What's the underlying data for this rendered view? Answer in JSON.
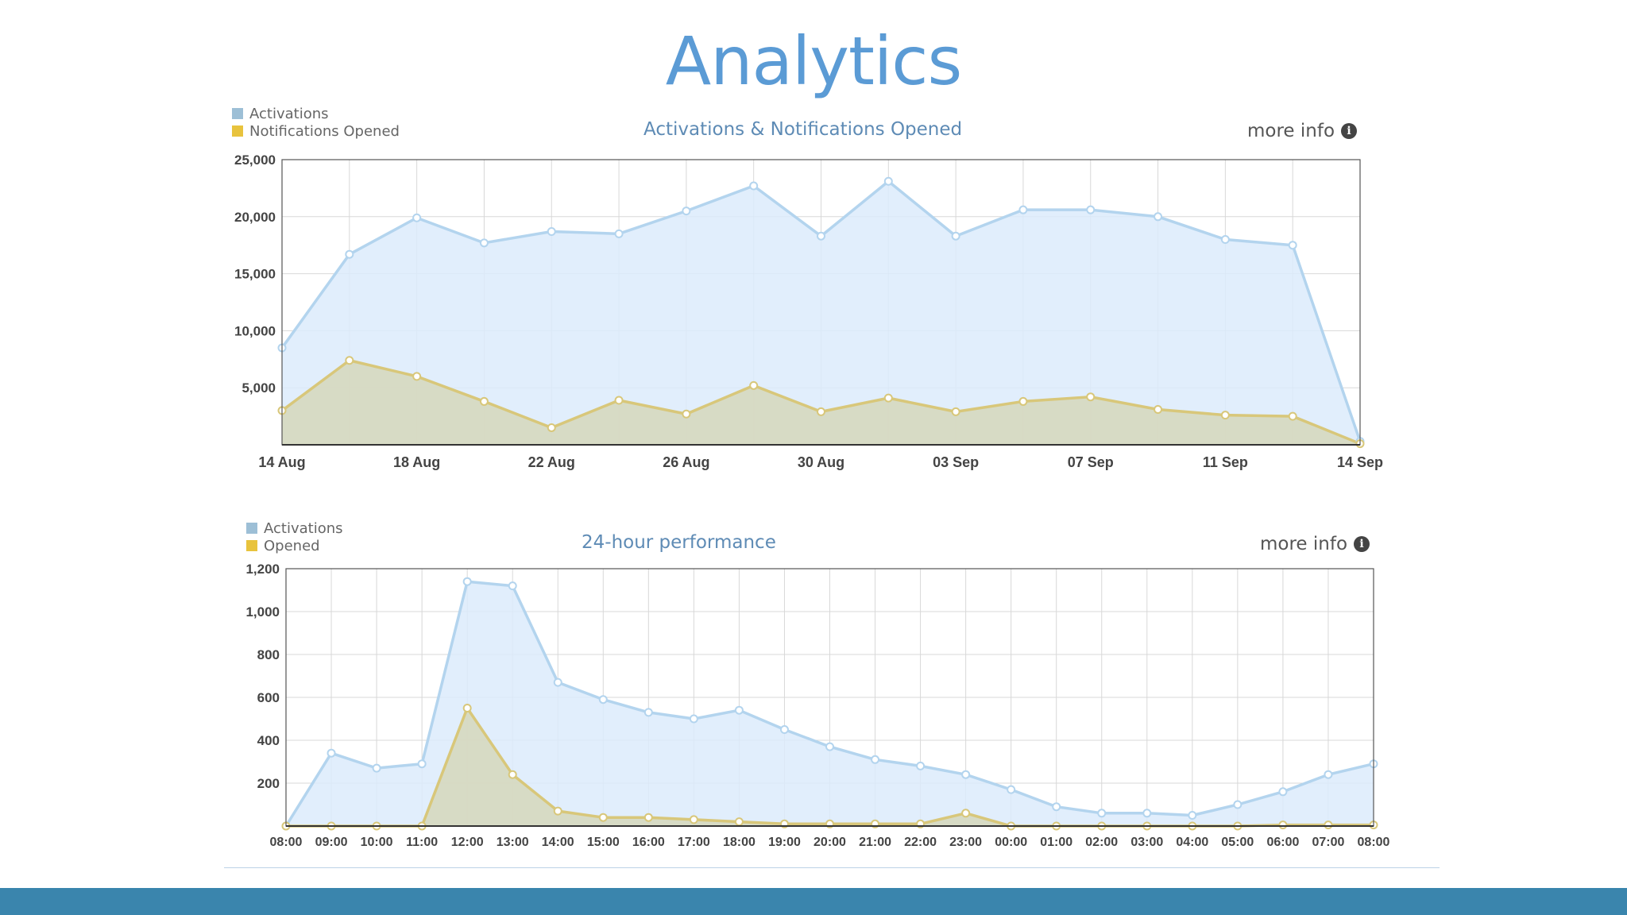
{
  "slide": {
    "title": "Analytics"
  },
  "colors": {
    "activations_line": "#b3d4ee",
    "activations_fill": "#dcebfb",
    "opened_line": "#d8c77a",
    "opened_fill": "#d6d8bf",
    "activations_swatch": "#9dbfd6",
    "opened_swatch": "#e8c33d",
    "grid": "#d8d8d8",
    "axis": "#555555",
    "tick_text": "#444444"
  },
  "chart_data": [
    {
      "type": "area",
      "title": "Activations & Notifications Opened",
      "more_info_label": "more info",
      "legend_position": "top-left",
      "grid": true,
      "ylim": [
        0,
        25000
      ],
      "yticks": [
        "25,000",
        "20,000",
        "15,000",
        "10,000",
        "5,000"
      ],
      "ytick_values": [
        25000,
        20000,
        15000,
        10000,
        5000
      ],
      "xtick_labels": [
        "14 Aug",
        "18 Aug",
        "22 Aug",
        "26 Aug",
        "30 Aug",
        "03 Sep",
        "07 Sep",
        "11 Sep",
        "14 Sep"
      ],
      "xtick_indices": [
        0,
        2,
        4,
        6,
        8,
        10,
        12,
        14,
        16
      ],
      "x": [
        "14 Aug",
        "16 Aug",
        "18 Aug",
        "20 Aug",
        "22 Aug",
        "24 Aug",
        "26 Aug",
        "28 Aug",
        "30 Aug",
        "01 Sep",
        "03 Sep",
        "05 Sep",
        "07 Sep",
        "09 Sep",
        "11 Sep",
        "13 Sep",
        "14 Sep"
      ],
      "series": [
        {
          "name": "Activations",
          "values": [
            8500,
            16700,
            19900,
            17700,
            18700,
            18500,
            20500,
            22700,
            18300,
            23100,
            18300,
            20600,
            20600,
            20000,
            18000,
            17500,
            300
          ]
        },
        {
          "name": "Notifications Opened",
          "values": [
            3000,
            7400,
            6000,
            3800,
            1500,
            3900,
            2700,
            5200,
            2900,
            4100,
            2900,
            3800,
            4200,
            3100,
            2600,
            2500,
            100
          ]
        }
      ]
    },
    {
      "type": "area",
      "title": "24-hour performance",
      "more_info_label": "more info",
      "legend_position": "top-left",
      "grid": true,
      "ylim": [
        0,
        1200
      ],
      "yticks": [
        "1,200",
        "1,000",
        "800",
        "600",
        "400",
        "200"
      ],
      "ytick_values": [
        1200,
        1000,
        800,
        600,
        400,
        200
      ],
      "x": [
        "08:00",
        "09:00",
        "10:00",
        "11:00",
        "12:00",
        "13:00",
        "14:00",
        "15:00",
        "16:00",
        "17:00",
        "18:00",
        "19:00",
        "20:00",
        "21:00",
        "22:00",
        "23:00",
        "00:00",
        "01:00",
        "02:00",
        "03:00",
        "04:00",
        "05:00",
        "06:00",
        "07:00",
        "08:00"
      ],
      "series": [
        {
          "name": "Activations",
          "values": [
            0,
            340,
            270,
            290,
            1140,
            1120,
            670,
            590,
            530,
            500,
            540,
            450,
            370,
            310,
            280,
            240,
            170,
            90,
            60,
            60,
            50,
            100,
            160,
            240,
            290
          ]
        },
        {
          "name": "Opened",
          "values": [
            0,
            0,
            0,
            0,
            550,
            240,
            70,
            40,
            40,
            30,
            20,
            10,
            10,
            10,
            10,
            60,
            0,
            0,
            0,
            0,
            0,
            0,
            5,
            5,
            5
          ]
        }
      ]
    }
  ]
}
